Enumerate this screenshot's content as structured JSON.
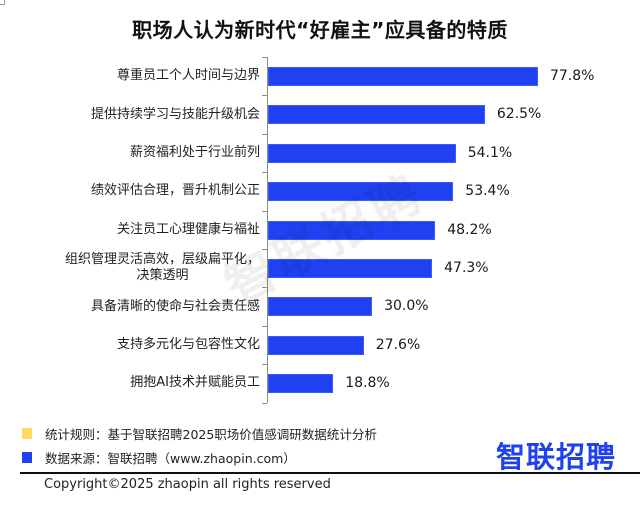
{
  "title": "职场人认为新时代“好雇主”应具备的特质",
  "chart_data": {
    "type": "bar",
    "orientation": "horizontal",
    "title": "职场人认为新时代“好雇主”应具备的特质",
    "xlabel": "",
    "ylabel": "",
    "unit": "%",
    "grid": false,
    "legend": "none",
    "categories": [
      "尊重员工个人时间与边界",
      "提供持续学习与技能升级机会",
      "薪资福利处于行业前列",
      "绩效评估合理，晋升机制公正",
      "关注员工心理健康与福祉",
      "组织管理灵活高效，层级扁平化，决策透明",
      "具备清晰的使命与社会责任感",
      "支持多元化与包容性文化",
      "拥抱AI技术并赋能员工"
    ],
    "values": [
      77.8,
      62.5,
      54.1,
      53.4,
      48.2,
      47.3,
      30.0,
      27.6,
      18.8
    ],
    "value_labels": [
      "77.8%",
      "62.5%",
      "54.1%",
      "53.4%",
      "48.2%",
      "47.3%",
      "30.0%",
      "27.6%",
      "18.8%"
    ],
    "bar_color": "#1f41f2"
  },
  "rows": [
    {
      "label_lines": [
        "尊重员工个人时间与边界"
      ],
      "value": 77.8,
      "value_label": "77.8%"
    },
    {
      "label_lines": [
        "提供持续学习与技能升级机会"
      ],
      "value": 62.5,
      "value_label": "62.5%"
    },
    {
      "label_lines": [
        "薪资福利处于行业前列"
      ],
      "value": 54.1,
      "value_label": "54.1%"
    },
    {
      "label_lines": [
        "绩效评估合理，晋升机制公正"
      ],
      "value": 53.4,
      "value_label": "53.4%"
    },
    {
      "label_lines": [
        "关注员工心理健康与福祉"
      ],
      "value": 48.2,
      "value_label": "48.2%"
    },
    {
      "label_lines": [
        "组织管理灵活高效，层级扁平化，",
        "决策透明"
      ],
      "value": 47.3,
      "value_label": "47.3%"
    },
    {
      "label_lines": [
        "具备清晰的使命与社会责任感"
      ],
      "value": 30.0,
      "value_label": "30.0%"
    },
    {
      "label_lines": [
        "支持多元化与包容性文化"
      ],
      "value": 27.6,
      "value_label": "27.6%"
    },
    {
      "label_lines": [
        "拥抱AI技术并赋能员工"
      ],
      "value": 18.8,
      "value_label": "18.8%"
    }
  ],
  "watermark": "智联招聘",
  "legend": [
    {
      "text": "统计规则：基于智联招聘2025职场价值感调研数据统计分析",
      "color": "#ffd966"
    },
    {
      "text": "数据来源：智联招聘（www.zhaopin.com）",
      "color": "#1f41f2"
    }
  ],
  "logo": "智联招聘",
  "copyright": "Copyright©2025 zhaopin all rights reserved"
}
